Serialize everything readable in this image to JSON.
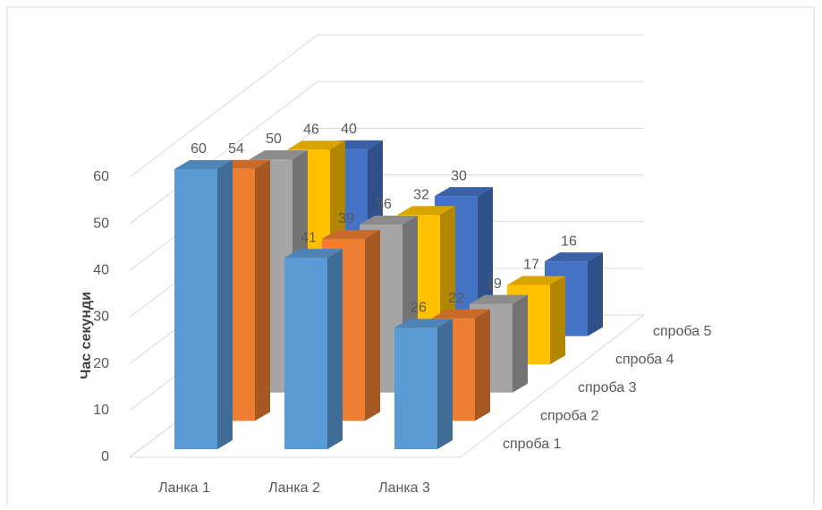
{
  "chart_data": {
    "type": "bar3d",
    "y_label": "Час секунди",
    "categories": [
      "Ланка 1",
      "Ланка 2",
      "Ланка 3"
    ],
    "series": [
      {
        "name": "спроба 1",
        "color": "#5b9bd5",
        "values": [
          60,
          41,
          26
        ]
      },
      {
        "name": "спроба 2",
        "color": "#ed7d31",
        "values": [
          54,
          39,
          22
        ]
      },
      {
        "name": "спроба 3",
        "color": "#a5a5a5",
        "values": [
          50,
          36,
          19
        ]
      },
      {
        "name": "спроба 4",
        "color": "#ffc000",
        "values": [
          46,
          32,
          17
        ]
      },
      {
        "name": "спроба 5",
        "color": "#4472c4",
        "values": [
          40,
          30,
          16
        ]
      }
    ],
    "ylim": [
      0,
      60
    ],
    "yticks": [
      0,
      10,
      20,
      30,
      40,
      50,
      60
    ],
    "grid": true
  }
}
